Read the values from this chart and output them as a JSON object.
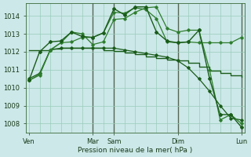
{
  "background_color": "#cce8e8",
  "grid_color": "#99ccbb",
  "line_dark": "#1a5c1a",
  "line_medium": "#2e7d2e",
  "xlabel": "Pression niveau de la mer( hPa )",
  "ylim": [
    1007.5,
    1014.7
  ],
  "yticks": [
    1008,
    1009,
    1010,
    1011,
    1012,
    1013,
    1014
  ],
  "xlim": [
    -0.3,
    20.3
  ],
  "xtick_positions": [
    0,
    6,
    8,
    14,
    20
  ],
  "xtick_labels": [
    "Ven",
    "Mar",
    "Sam",
    "Dim",
    "Lun"
  ],
  "vline_positions": [
    6,
    8,
    14,
    20
  ],
  "n_points": 21,
  "series_smooth": [
    1012.1,
    1012.1,
    1012.15,
    1012.2,
    1012.2,
    1012.2,
    1012.2,
    1012.1,
    1012.05,
    1011.95,
    1011.85,
    1011.75,
    1011.65,
    1011.55,
    1011.5,
    1011.4,
    1011.15,
    1010.95,
    1010.8,
    1010.7,
    1010.6
  ],
  "series_drop": [
    1010.5,
    1010.8,
    1012.1,
    1012.2,
    1012.2,
    1012.2,
    1012.2,
    1012.2,
    1012.2,
    1012.1,
    1012.0,
    1011.9,
    1011.8,
    1011.7,
    1011.5,
    1011.1,
    1010.5,
    1009.8,
    1009.0,
    1008.3,
    1008.2
  ],
  "series_peak_drop": [
    1010.4,
    1010.75,
    1012.1,
    1012.5,
    1012.55,
    1012.8,
    1012.8,
    1013.05,
    1014.2,
    1014.15,
    1014.45,
    1014.35,
    1013.85,
    1012.55,
    1012.5,
    1012.55,
    1012.5,
    1012.5,
    1012.5,
    1012.5,
    1012.8
  ],
  "series_peak_sharp": [
    1010.4,
    1012.0,
    1012.55,
    1012.6,
    1013.1,
    1012.85,
    1012.8,
    1013.05,
    1014.4,
    1014.05,
    1014.5,
    1014.5,
    1013.1,
    1012.6,
    1012.5,
    1012.55,
    1013.2,
    1010.5,
    1008.5,
    1008.5,
    1007.8
  ],
  "series_rising": [
    1010.4,
    1010.7,
    1012.1,
    1012.5,
    1013.1,
    1013.0,
    1012.4,
    1012.55,
    1013.8,
    1013.85,
    1014.2,
    1014.45,
    1014.5,
    1013.3,
    1013.1,
    1013.2,
    1013.2,
    1011.0,
    1008.2,
    1008.5,
    1008.0
  ]
}
